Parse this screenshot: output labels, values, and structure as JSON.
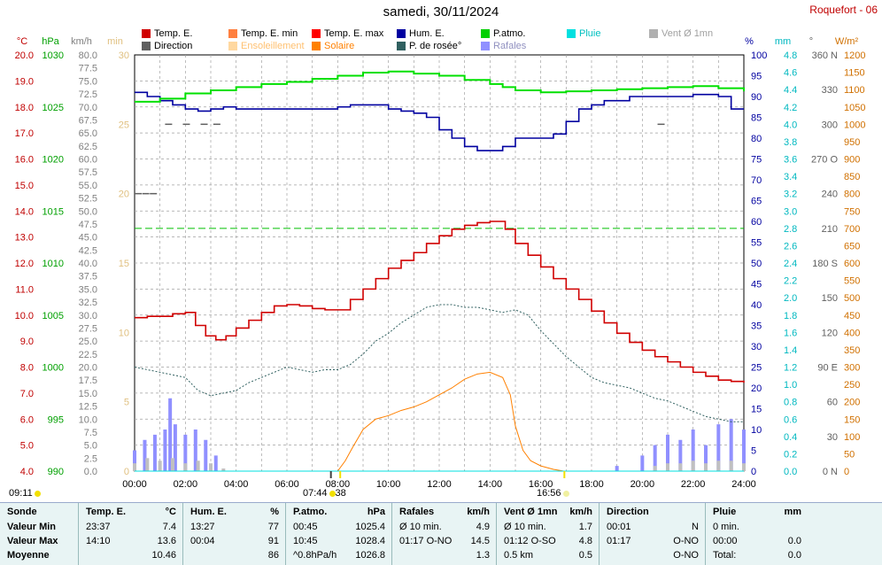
{
  "header": {
    "title": "samedi, 30/11/2024",
    "station": "Roquefort - 06"
  },
  "legend": [
    {
      "label": "Temp. E.",
      "color": "#d00000",
      "text_color": "#000000"
    },
    {
      "label": "Temp. E. min",
      "color": "#ff8040",
      "text_color": "#000000"
    },
    {
      "label": "Temp. E. max",
      "color": "#ff0000",
      "text_color": "#000000"
    },
    {
      "label": "Hum. E.",
      "color": "#0000a0",
      "text_color": "#000000"
    },
    {
      "label": "P.atmo.",
      "color": "#00d000",
      "text_color": "#000000"
    },
    {
      "label": "Pluie",
      "color": "#00e0e0",
      "text_color": "#00c0c0"
    },
    {
      "label": "Vent Ø 1mn",
      "color": "#b0b0b0",
      "text_color": "#a0a0a0"
    },
    {
      "label": "Direction",
      "color": "#606060",
      "text_color": "#000000"
    },
    {
      "label": "Ensoleillement",
      "color": "#ffd8a0",
      "text_color": "#ffc070"
    },
    {
      "label": "Solaire",
      "color": "#ff8000",
      "text_color": "#ff8000"
    },
    {
      "label": "P. de rosée°",
      "color": "#306060",
      "text_color": "#000000"
    },
    {
      "label": "Rafales",
      "color": "#9090ff",
      "text_color": "#9090c0"
    }
  ],
  "axis_units": {
    "temp": "°C",
    "pressure": "hPa",
    "wind": "km/h",
    "sun": "min",
    "humidity": "%",
    "rain": "mm",
    "direction": "°",
    "solar": "W/m²"
  },
  "axes": {
    "temp": [
      "20.0",
      "19.0",
      "18.0",
      "17.0",
      "16.0",
      "15.0",
      "14.0",
      "13.0",
      "12.0",
      "11.0",
      "10.0",
      "9.0",
      "8.0",
      "7.0",
      "6.0",
      "5.0",
      "4.0"
    ],
    "pressure": [
      "1030",
      "1025",
      "1020",
      "1015",
      "1010",
      "1005",
      "1000",
      "995",
      "990"
    ],
    "wind": [
      "80.0",
      "77.5",
      "75.0",
      "72.5",
      "70.0",
      "67.5",
      "65.0",
      "62.5",
      "60.0",
      "57.5",
      "55.0",
      "52.5",
      "50.0",
      "47.5",
      "45.0",
      "42.5",
      "40.0",
      "37.5",
      "35.0",
      "32.5",
      "30.0",
      "27.5",
      "25.0",
      "22.5",
      "20.0",
      "17.5",
      "15.0",
      "12.5",
      "10.0",
      "7.5",
      "5.0",
      "2.5",
      "0.0"
    ],
    "sun": [
      "30",
      "25",
      "20",
      "15",
      "10",
      "5",
      "0"
    ],
    "humidity": [
      "100",
      "95",
      "90",
      "85",
      "80",
      "75",
      "70",
      "65",
      "60",
      "55",
      "50",
      "45",
      "40",
      "35",
      "30",
      "25",
      "20",
      "15",
      "10",
      "5",
      "0"
    ],
    "rain": [
      "4.8",
      "4.6",
      "4.4",
      "4.2",
      "4.0",
      "3.8",
      "3.6",
      "3.4",
      "3.2",
      "3.0",
      "2.8",
      "2.6",
      "2.4",
      "2.2",
      "2.0",
      "1.8",
      "1.6",
      "1.4",
      "1.2",
      "1.0",
      "0.8",
      "0.6",
      "0.4",
      "0.2",
      "0.0"
    ],
    "direction": [
      "360 N",
      "330",
      "300",
      "270 O",
      "240",
      "210",
      "180 S",
      "150",
      "120",
      "90 E",
      "60",
      "30",
      "0 N"
    ],
    "solar": [
      "1200",
      "1150",
      "1100",
      "1050",
      "1000",
      "950",
      "900",
      "850",
      "800",
      "750",
      "700",
      "650",
      "600",
      "550",
      "500",
      "450",
      "400",
      "350",
      "300",
      "250",
      "200",
      "150",
      "100",
      "50",
      "0"
    ],
    "time": [
      "00:00",
      "02:00",
      "04:00",
      "06:00",
      "08:00",
      "10:00",
      "12:00",
      "14:00",
      "16:00",
      "18:00",
      "20:00",
      "22:00",
      "24:00"
    ]
  },
  "sun_times": {
    "first": "09:11",
    "sunrise": "07:44",
    "sunrise_suffix": "38",
    "sunset": "16:56"
  },
  "chart_data": {
    "type": "line",
    "x_unit": "hours",
    "xlim": [
      0,
      24
    ],
    "series": [
      {
        "name": "Temp. E.",
        "axis": "temp °C",
        "x": [
          0,
          0.5,
          1,
          1.5,
          2,
          2.4,
          2.8,
          3.2,
          3.6,
          4,
          4.5,
          5,
          5.5,
          6,
          6.5,
          7,
          7.5,
          8,
          8.5,
          9,
          9.5,
          10,
          10.5,
          11,
          11.5,
          12,
          12.5,
          13,
          13.5,
          14,
          14.2,
          14.6,
          15,
          15.5,
          16,
          16.5,
          17,
          17.5,
          18,
          18.5,
          19,
          19.5,
          20,
          20.5,
          21,
          21.5,
          22,
          22.5,
          23,
          23.5,
          24
        ],
        "values": [
          9.9,
          9.95,
          9.95,
          10.05,
          10.1,
          9.6,
          9.2,
          9.05,
          9.2,
          9.5,
          9.8,
          10.1,
          10.35,
          10.4,
          10.35,
          10.25,
          10.2,
          10.2,
          10.6,
          11.0,
          11.4,
          11.8,
          12.1,
          12.4,
          12.75,
          13.05,
          13.3,
          13.45,
          13.55,
          13.6,
          13.6,
          13.3,
          12.75,
          12.3,
          11.85,
          11.4,
          11.0,
          10.6,
          10.15,
          9.7,
          9.3,
          8.95,
          8.65,
          8.4,
          8.2,
          8.0,
          7.8,
          7.65,
          7.5,
          7.45,
          7.4
        ]
      },
      {
        "name": "Hum. E.",
        "axis": "humidity %",
        "x": [
          0,
          0.5,
          1,
          1.5,
          2,
          2.5,
          3,
          3.5,
          4,
          4.5,
          5,
          5.5,
          6,
          6.5,
          7,
          7.5,
          8,
          8.5,
          9,
          9.5,
          10,
          10.5,
          11,
          11.5,
          12,
          12.5,
          13,
          13.5,
          14,
          14.5,
          15,
          15.5,
          16,
          16.5,
          17,
          17.5,
          18,
          18.5,
          19,
          19.5,
          20,
          20.5,
          21,
          21.5,
          22,
          22.5,
          23,
          23.5,
          24
        ],
        "values": [
          91,
          90,
          89,
          88,
          87,
          86.5,
          87,
          87.5,
          87,
          87,
          87,
          87,
          87,
          87,
          87,
          87,
          87.5,
          88,
          88,
          88,
          87,
          86.5,
          86,
          85,
          82,
          80,
          78,
          77,
          77,
          78,
          80,
          80,
          80,
          81,
          84,
          87,
          88,
          89,
          89,
          90,
          90,
          90,
          90,
          90,
          90.5,
          90.5,
          90,
          87,
          87
        ]
      },
      {
        "name": "P.atmo.",
        "axis": "pressure hPa",
        "x": [
          0,
          1,
          2,
          3,
          4,
          5,
          6,
          7,
          8,
          9,
          10,
          11,
          12,
          13,
          14,
          14.5,
          15,
          16,
          17,
          18,
          19,
          20,
          21,
          22,
          23,
          24
        ],
        "values": [
          1025.5,
          1025.8,
          1026.3,
          1026.6,
          1026.9,
          1027.2,
          1027.4,
          1027.7,
          1028.0,
          1028.3,
          1028.4,
          1028.2,
          1028.0,
          1027.6,
          1027.2,
          1026.9,
          1026.6,
          1026.4,
          1026.5,
          1026.6,
          1026.7,
          1026.8,
          1026.9,
          1027.0,
          1026.8,
          1026.5
        ]
      },
      {
        "name": "P. de rosée°",
        "axis": "temp °C",
        "x": [
          0,
          1,
          2,
          2.5,
          3,
          3.5,
          4,
          4.5,
          5,
          5.5,
          6,
          6.5,
          7,
          7.5,
          8,
          8.5,
          9,
          9.5,
          10,
          10.5,
          11,
          11.5,
          12,
          12.5,
          13,
          13.5,
          14,
          14.5,
          15,
          15.5,
          16,
          16.5,
          17,
          17.5,
          18,
          18.5,
          19,
          19.5,
          20,
          20.5,
          21,
          21.5,
          22,
          22.5,
          23,
          23.5,
          24
        ],
        "values": [
          8.0,
          7.8,
          7.6,
          7.1,
          6.9,
          7.0,
          7.1,
          7.4,
          7.6,
          7.8,
          8.0,
          7.9,
          7.8,
          7.9,
          7.9,
          8.1,
          8.5,
          9.0,
          9.3,
          9.7,
          10.0,
          10.3,
          10.4,
          10.4,
          10.3,
          10.3,
          10.2,
          10.1,
          10.2,
          10.0,
          9.4,
          8.9,
          8.4,
          8.0,
          7.6,
          7.4,
          7.3,
          7.2,
          7.0,
          6.8,
          6.7,
          6.5,
          6.3,
          6.1,
          6.0,
          5.9,
          5.9
        ]
      },
      {
        "name": "Solaire",
        "axis": "solar W/m²",
        "x": [
          8,
          8.3,
          8.6,
          9,
          9.5,
          10,
          10.5,
          11,
          11.5,
          12,
          12.5,
          13,
          13.5,
          14,
          14.5,
          14.8,
          15,
          15.3,
          15.6,
          16,
          16.5,
          16.9
        ],
        "values": [
          0,
          30,
          70,
          120,
          150,
          160,
          175,
          185,
          200,
          220,
          240,
          265,
          280,
          285,
          270,
          220,
          130,
          60,
          30,
          15,
          5,
          0
        ]
      },
      {
        "name": "Rafales",
        "axis": "wind km/h",
        "x": [
          0,
          0.4,
          0.8,
          1.2,
          1.4,
          1.6,
          2,
          2.4,
          2.8,
          3.2,
          4,
          6,
          8,
          10,
          12,
          14,
          16,
          18,
          19,
          20,
          20.5,
          21,
          21.5,
          22,
          22.5,
          23,
          23.5,
          24
        ],
        "values": [
          4,
          6,
          7,
          8,
          14,
          9,
          7,
          8,
          6,
          3,
          0,
          0,
          0,
          0,
          0,
          0,
          0,
          0,
          1,
          3,
          5,
          7,
          6,
          8,
          5,
          9,
          10,
          8
        ]
      },
      {
        "name": "Vent Ø 1mn",
        "axis": "wind km/h",
        "x": [
          0,
          0.5,
          1,
          1.5,
          2,
          2.5,
          3,
          3.5,
          4,
          20,
          20.5,
          21,
          21.5,
          22,
          22.5,
          23,
          23.5,
          24
        ],
        "values": [
          1.5,
          2.5,
          2,
          2.5,
          1.5,
          2,
          1.5,
          0.5,
          0,
          0,
          1,
          1.5,
          1.5,
          2,
          1.5,
          2,
          2,
          1.5
        ]
      },
      {
        "name": "Direction",
        "axis": "direction °",
        "x": [
          0,
          0.3,
          0.6,
          1.2,
          1.9,
          2.6,
          3.1,
          20.6,
          24
        ],
        "values": [
          240,
          240,
          240,
          300,
          300,
          300,
          300,
          300,
          300
        ]
      },
      {
        "name": "Pluie",
        "axis": "rain mm",
        "x": [
          0,
          24
        ],
        "values": [
          0,
          0
        ]
      }
    ],
    "reference_line": {
      "axis": "solar W/m²",
      "value": 700
    },
    "ylim": {
      "temp": [
        4,
        20
      ],
      "pressure": [
        990,
        1030
      ],
      "wind": [
        0,
        80
      ],
      "sun": [
        0,
        30
      ],
      "humidity": [
        0,
        100
      ],
      "rain": [
        0,
        5
      ],
      "direction": [
        0,
        360
      ],
      "solar": [
        0,
        1200
      ]
    },
    "grid": true
  },
  "table": {
    "columns": [
      {
        "title": "Sonde",
        "unit": "",
        "rows": [
          [
            "Valeur Min",
            ""
          ],
          [
            "Valeur Max",
            ""
          ],
          [
            "Moyenne",
            ""
          ]
        ]
      },
      {
        "title": "Temp. E.",
        "unit": "°C",
        "rows": [
          [
            "23:37",
            "7.4"
          ],
          [
            "14:10",
            "13.6"
          ],
          [
            "",
            "10.46"
          ]
        ]
      },
      {
        "title": "Hum. E.",
        "unit": "%",
        "rows": [
          [
            "13:27",
            "77"
          ],
          [
            "00:04",
            "91"
          ],
          [
            "",
            "86"
          ]
        ]
      },
      {
        "title": "P.atmo.",
        "unit": "hPa",
        "rows": [
          [
            "00:45",
            "1025.4"
          ],
          [
            "10:45",
            "1028.4"
          ],
          [
            "^0.8hPa/h",
            "1026.8"
          ]
        ]
      },
      {
        "title": "Rafales",
        "unit": "km/h",
        "rows": [
          [
            "Ø 10 min.",
            "4.9"
          ],
          [
            "01:17  O-NO",
            "14.5"
          ],
          [
            "",
            "1.3"
          ]
        ]
      },
      {
        "title": "Vent Ø 1mn",
        "unit": "km/h",
        "rows": [
          [
            "Ø 10 min.",
            "1.7"
          ],
          [
            "01:12  O-SO",
            "4.8"
          ],
          [
            "0.5 km",
            "0.5"
          ]
        ]
      },
      {
        "title": "Direction",
        "unit": "",
        "rows": [
          [
            "00:01",
            "N"
          ],
          [
            "01:17",
            "O-NO"
          ],
          [
            "",
            "O-NO"
          ]
        ]
      },
      {
        "title": "Pluie",
        "unit": "mm",
        "rows": [
          [
            "0 min.",
            ""
          ],
          [
            "00:00",
            "0.0"
          ],
          [
            "Total:",
            "0.0"
          ]
        ]
      }
    ]
  }
}
